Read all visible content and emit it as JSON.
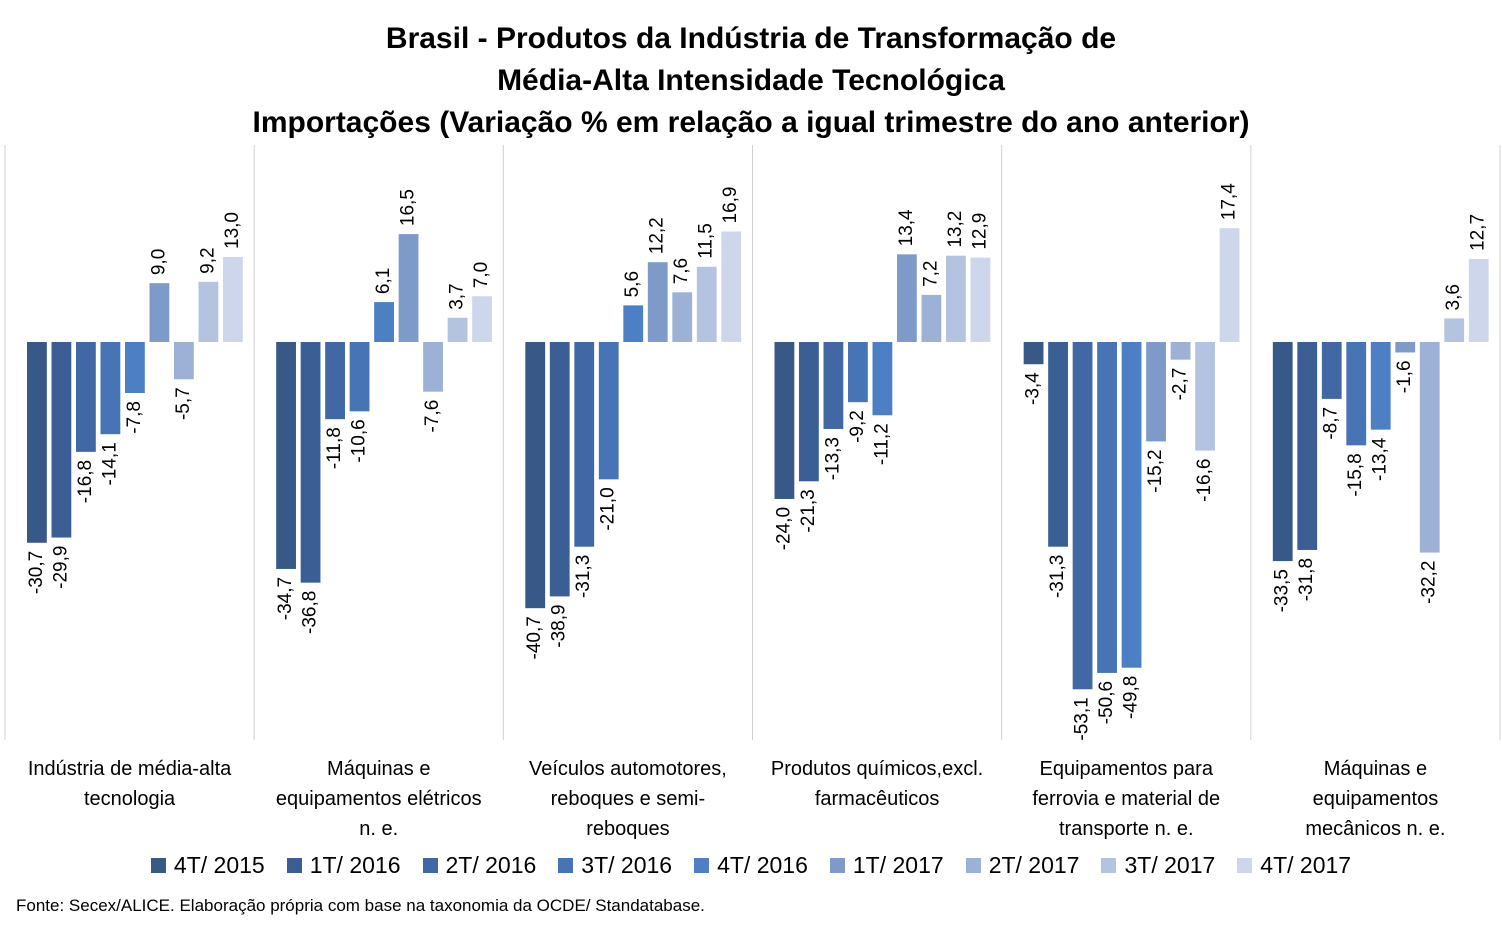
{
  "chart_data": {
    "type": "bar",
    "title": [
      "Brasil - Produtos da Indústria de Transformação de",
      "Média-Alta Intensidade Tecnológica",
      "Importações (Variação % em relação a igual trimestre do ano anterior)"
    ],
    "categories": [
      [
        "Indústria de média-alta",
        "tecnologia"
      ],
      [
        "Máquinas e",
        "equipamentos elétricos",
        "n. e."
      ],
      [
        "Veículos automotores,",
        "reboques e semi-",
        "reboques"
      ],
      [
        "Produtos químicos,excl.",
        "farmacêuticos"
      ],
      [
        "Equipamentos para",
        "ferrovia e material de",
        "transporte n. e."
      ],
      [
        "Máquinas e",
        "equipamentos",
        "mecânicos  n. e."
      ]
    ],
    "series": [
      {
        "name": "4T/ 2015",
        "color": "#385887",
        "values": [
          -30.7,
          -34.7,
          -40.7,
          -24.0,
          -3.4,
          -33.5
        ],
        "labels": [
          "-30,7",
          "-34,7",
          "-40,7",
          "-24,0",
          "-3,4",
          "-33,5"
        ]
      },
      {
        "name": "1T/ 2016",
        "color": "#3b5f95",
        "values": [
          -29.9,
          -36.8,
          -38.9,
          -21.3,
          -31.3,
          -31.8
        ],
        "labels": [
          "-29,9",
          "-36,8",
          "-38,9",
          "-21,3",
          "-31,3",
          "-31,8"
        ]
      },
      {
        "name": "2T/ 2016",
        "color": "#4168a4",
        "values": [
          -16.8,
          -11.8,
          -31.3,
          -13.3,
          -53.1,
          -8.7
        ],
        "labels": [
          "-16,8",
          "-11,8",
          "-31,3",
          "-13,3",
          "-53,1",
          "-8,7"
        ]
      },
      {
        "name": "3T/ 2016",
        "color": "#4674b5",
        "values": [
          -14.1,
          -10.6,
          -21.0,
          -9.2,
          -50.6,
          -15.8
        ],
        "labels": [
          "-14,1",
          "-10,6",
          "-21,0",
          "-9,2",
          "-50,6",
          "-15,8"
        ]
      },
      {
        "name": "4T/ 2016",
        "color": "#4c7fc3",
        "values": [
          -7.8,
          6.1,
          5.6,
          -11.2,
          -49.8,
          -13.4
        ],
        "labels": [
          "-7,8",
          "6,1",
          "5,6",
          "-11,2",
          "-49,8",
          "-13,4"
        ]
      },
      {
        "name": "1T/ 2017",
        "color": "#7d9ac9",
        "values": [
          9.0,
          16.5,
          12.2,
          13.4,
          -15.2,
          -1.6
        ],
        "labels": [
          "9,0",
          "16,5",
          "12,2",
          "13,4",
          "-15,2",
          "-1,6"
        ]
      },
      {
        "name": "2T/ 2017",
        "color": "#9db1d6",
        "values": [
          -5.7,
          -7.6,
          7.6,
          7.2,
          -2.7,
          -32.2
        ],
        "labels": [
          "-5,7",
          "-7,6",
          "7,6",
          "7,2",
          "-2,7",
          "-32,2"
        ]
      },
      {
        "name": "3T/ 2017",
        "color": "#b3c3e0",
        "values": [
          9.2,
          3.7,
          11.5,
          13.2,
          -16.6,
          3.6
        ],
        "labels": [
          "9,2",
          "3,7",
          "11,5",
          "13,2",
          "-16,6",
          "3,6"
        ]
      },
      {
        "name": "4T/ 2017",
        "color": "#cdd6ea",
        "values": [
          13.0,
          7.0,
          16.9,
          12.9,
          17.4,
          12.7
        ],
        "labels": [
          "13,0",
          "7,0",
          "16,9",
          "12,9",
          "17,4",
          "12,7"
        ]
      }
    ],
    "ylim": [
      -56,
      20
    ],
    "grid": false,
    "legend": "bottom"
  },
  "source": "Fonte: Secex/ALICE. Elaboração própria com base na taxonomia da OCDE/ Standatabase."
}
